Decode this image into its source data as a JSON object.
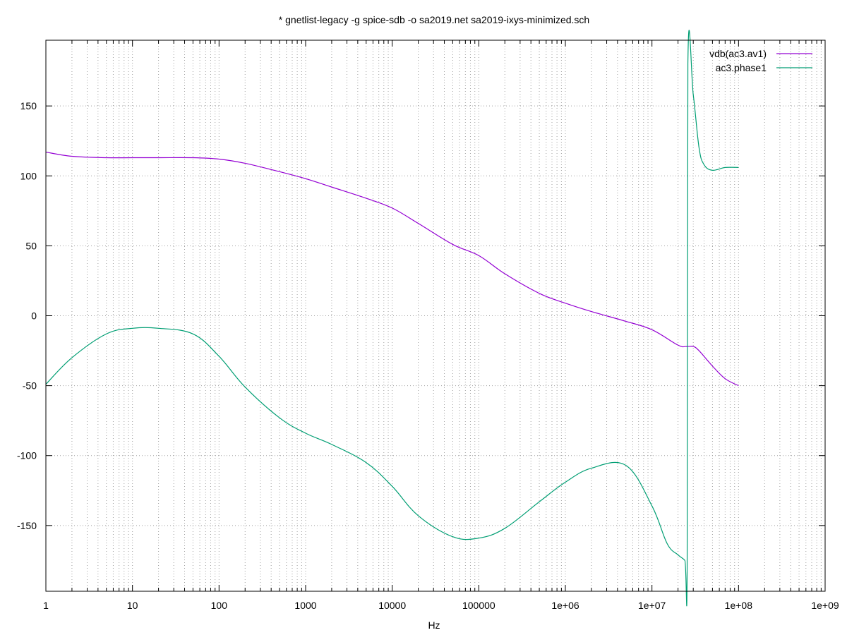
{
  "chart_data": {
    "type": "line",
    "title": "* gnetlist-legacy -g spice-sdb -o sa2019.net sa2019-ixys-minimized.sch",
    "xlabel": "Hz",
    "ylabel": "",
    "x_scale": "log",
    "xlim": [
      1,
      1000000000
    ],
    "ylim": [
      -197,
      197
    ],
    "grid": true,
    "legend_position": "top-right",
    "x_ticks": [
      {
        "value": 1,
        "label": "1"
      },
      {
        "value": 10,
        "label": "10"
      },
      {
        "value": 100,
        "label": "100"
      },
      {
        "value": 1000,
        "label": "1000"
      },
      {
        "value": 10000,
        "label": "10000"
      },
      {
        "value": 100000,
        "label": "100000"
      },
      {
        "value": 1000000,
        "label": "1e+06"
      },
      {
        "value": 10000000,
        "label": "1e+07"
      },
      {
        "value": 100000000,
        "label": "1e+08"
      },
      {
        "value": 1000000000,
        "label": "1e+09"
      }
    ],
    "y_ticks": [
      {
        "value": 150,
        "label": "150"
      },
      {
        "value": 100,
        "label": "100"
      },
      {
        "value": 50,
        "label": "50"
      },
      {
        "value": 0,
        "label": "0"
      },
      {
        "value": -50,
        "label": "-50"
      },
      {
        "value": -100,
        "label": "-100"
      },
      {
        "value": -150,
        "label": "-150"
      }
    ],
    "series": [
      {
        "name": "vdb(ac3.av1)",
        "color": "#9400d3",
        "points": [
          [
            1,
            117
          ],
          [
            2,
            114
          ],
          [
            5,
            113
          ],
          [
            10,
            113
          ],
          [
            20,
            113
          ],
          [
            50,
            113
          ],
          [
            100,
            112
          ],
          [
            200,
            109
          ],
          [
            500,
            103
          ],
          [
            1000,
            98
          ],
          [
            2000,
            92
          ],
          [
            5000,
            84
          ],
          [
            10000,
            77
          ],
          [
            20000,
            66
          ],
          [
            50000,
            51
          ],
          [
            100000,
            43
          ],
          [
            200000,
            30
          ],
          [
            500000,
            16
          ],
          [
            1000000,
            9
          ],
          [
            2000000,
            3
          ],
          [
            5000000,
            -4
          ],
          [
            10000000,
            -10
          ],
          [
            20000000,
            -21
          ],
          [
            25000000,
            -22
          ],
          [
            30000000,
            -22
          ],
          [
            35000000,
            -25
          ],
          [
            50000000,
            -36
          ],
          [
            70000000,
            -45
          ],
          [
            100000000,
            -50
          ]
        ]
      },
      {
        "name": "ac3.phase1",
        "color": "#009e73",
        "points": [
          [
            1,
            -49
          ],
          [
            2,
            -30
          ],
          [
            5,
            -13
          ],
          [
            10,
            -9
          ],
          [
            20,
            -9
          ],
          [
            50,
            -13
          ],
          [
            100,
            -29
          ],
          [
            200,
            -51
          ],
          [
            500,
            -73
          ],
          [
            1000,
            -84
          ],
          [
            2000,
            -92
          ],
          [
            5000,
            -105
          ],
          [
            10000,
            -122
          ],
          [
            20000,
            -143
          ],
          [
            50000,
            -158
          ],
          [
            100000,
            -159
          ],
          [
            200000,
            -152
          ],
          [
            500000,
            -133
          ],
          [
            1000000,
            -119
          ],
          [
            2000000,
            -109
          ],
          [
            5000000,
            -107
          ],
          [
            10000000,
            -136
          ],
          [
            15000000,
            -163
          ],
          [
            20000000,
            -171
          ],
          [
            24000000,
            -175
          ],
          [
            25500000,
            -180
          ],
          [
            26000000,
            180
          ],
          [
            30000000,
            158
          ],
          [
            35000000,
            120
          ],
          [
            40000000,
            108
          ],
          [
            50000000,
            104
          ],
          [
            70000000,
            106
          ],
          [
            100000000,
            106
          ]
        ]
      }
    ]
  }
}
